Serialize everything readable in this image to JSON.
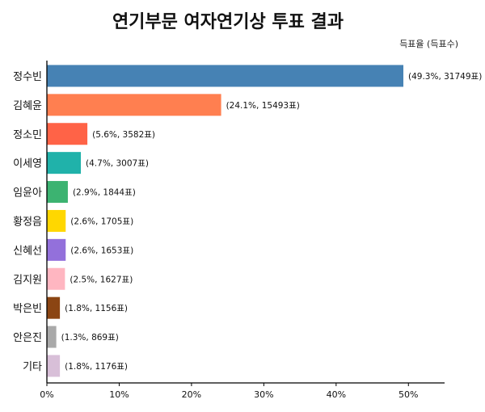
{
  "chart_data": {
    "type": "bar",
    "orientation": "horizontal",
    "title": "연기부문 여자연기상 투표 결과",
    "note": "득표율 (득표수)",
    "xlim": [
      0,
      55
    ],
    "xticks": [
      0,
      10,
      20,
      30,
      40,
      50
    ],
    "xtick_labels": [
      "0%",
      "10%",
      "20%",
      "30%",
      "40%",
      "50%"
    ],
    "grid": false,
    "categories": [
      "정수빈",
      "김혜윤",
      "정소민",
      "이세영",
      "임윤아",
      "황정음",
      "신혜선",
      "김지원",
      "박은빈",
      "안은진",
      "기타"
    ],
    "values": [
      49.3,
      24.1,
      5.6,
      4.7,
      2.9,
      2.6,
      2.6,
      2.5,
      1.8,
      1.3,
      1.8
    ],
    "votes": [
      31749,
      15493,
      3582,
      3007,
      1844,
      1705,
      1653,
      1627,
      1156,
      869,
      1176
    ],
    "data_labels": [
      "(49.3%, 31749표)",
      "(24.1%, 15493표)",
      "(5.6%, 3582표)",
      "(4.7%, 3007표)",
      "(2.9%, 1844표)",
      "(2.6%, 1705표)",
      "(2.6%, 1653표)",
      "(2.5%, 1627표)",
      "(1.8%, 1156표)",
      "(1.3%, 869표)",
      "(1.8%, 1176표)"
    ],
    "colors": [
      "#4682b4",
      "#ff7f50",
      "#ff6347",
      "#20b2aa",
      "#3cb371",
      "#ffd700",
      "#9370db",
      "#ffb6c1",
      "#8b4513",
      "#a9a9a9",
      "#d8bfd8"
    ]
  }
}
